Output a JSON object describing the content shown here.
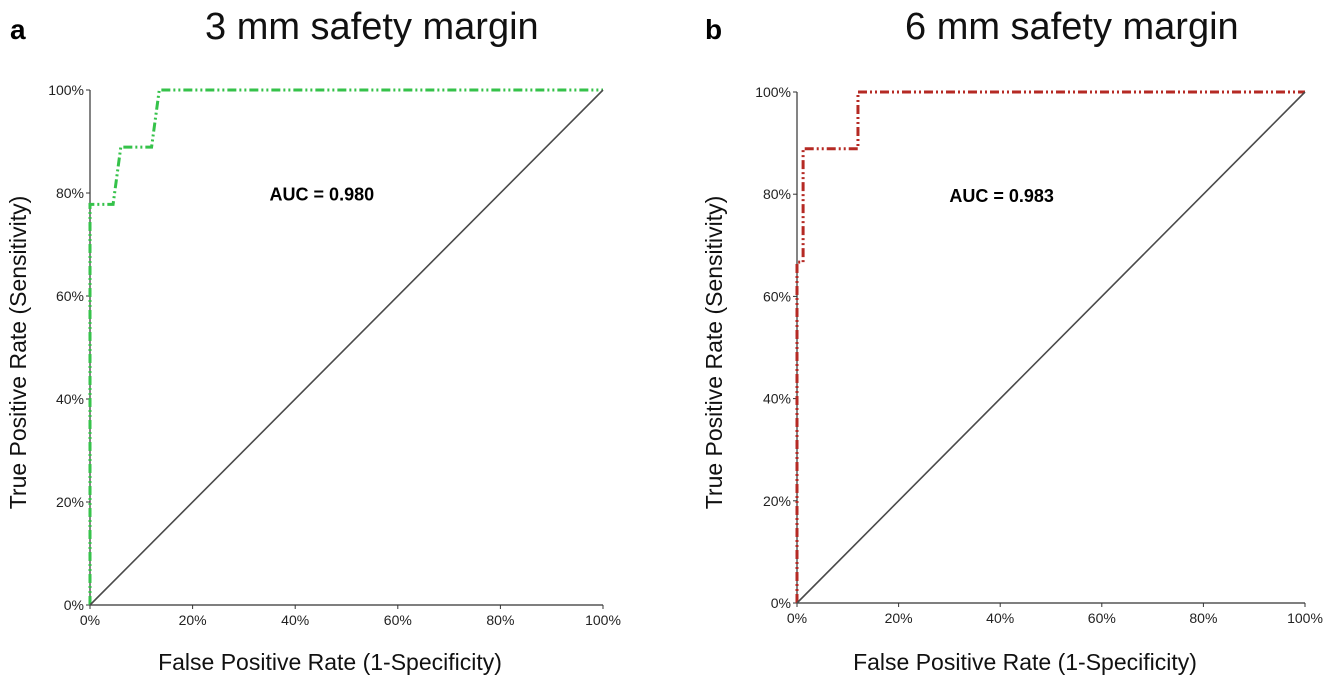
{
  "chart_data": [
    {
      "type": "line",
      "panel_label": "a",
      "title": "3 mm safety margin",
      "xlabel": "False Positive Rate (1-Specificity)",
      "ylabel": "True Positive Rate (Sensitivity)",
      "xlim": [
        0,
        100
      ],
      "ylim": [
        0,
        100
      ],
      "xticks": [
        "0%",
        "20%",
        "40%",
        "60%",
        "80%",
        "100%"
      ],
      "yticks": [
        "0%",
        "20%",
        "40%",
        "60%",
        "80%",
        "100%"
      ],
      "annotation": "AUC = 0.980",
      "grid": false,
      "series": [
        {
          "color": "#35c24a",
          "style": "dash-dot-dot",
          "x": [
            0,
            0,
            4.5,
            6,
            12,
            13.5,
            100
          ],
          "y": [
            0,
            77.8,
            77.8,
            88.9,
            88.9,
            100,
            100
          ]
        },
        {
          "color": "#4a4a4a",
          "style": "solid",
          "x": [
            0,
            100
          ],
          "y": [
            0,
            100
          ]
        }
      ]
    },
    {
      "type": "line",
      "panel_label": "b",
      "title": "6 mm safety margin",
      "xlabel": "False Positive Rate (1-Specificity)",
      "ylabel": "True Positive Rate (Sensitivity)",
      "xlim": [
        0,
        100
      ],
      "ylim": [
        0,
        100
      ],
      "xticks": [
        "0%",
        "20%",
        "40%",
        "60%",
        "80%",
        "100%"
      ],
      "yticks": [
        "0%",
        "20%",
        "40%",
        "60%",
        "80%",
        "100%"
      ],
      "annotation": "AUC = 0.983",
      "grid": false,
      "series": [
        {
          "color": "#b52a24",
          "style": "dash-dot-dot",
          "x": [
            0,
            0,
            1.2,
            1.2,
            12,
            12,
            100
          ],
          "y": [
            0,
            66.7,
            66.7,
            88.9,
            88.9,
            100,
            100
          ]
        },
        {
          "color": "#4a4a4a",
          "style": "solid",
          "x": [
            0,
            100
          ],
          "y": [
            0,
            100
          ]
        }
      ]
    }
  ]
}
